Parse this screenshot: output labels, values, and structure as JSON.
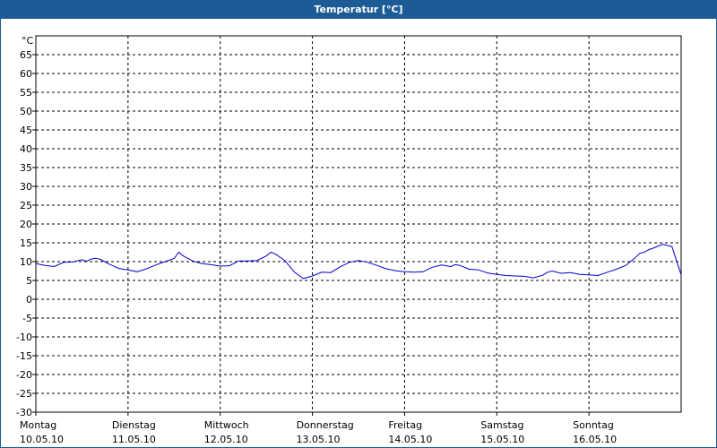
{
  "chart_data": {
    "type": "line",
    "title": "Temperatur [°C]",
    "unit": "°C",
    "ylim": [
      -30,
      70
    ],
    "yticks": [
      65,
      60,
      55,
      50,
      45,
      40,
      35,
      30,
      25,
      20,
      15,
      10,
      5,
      0,
      -5,
      -10,
      -15,
      -20,
      -25,
      -30
    ],
    "grid": true,
    "xlim": [
      0,
      7
    ],
    "days": [
      {
        "name": "Montag",
        "date": "10.05.10"
      },
      {
        "name": "Dienstag",
        "date": "11.05.10"
      },
      {
        "name": "Mittwoch",
        "date": "12.05.10"
      },
      {
        "name": "Donnerstag",
        "date": "13.05.10"
      },
      {
        "name": "Freitag",
        "date": "14.05.10"
      },
      {
        "name": "Samstag",
        "date": "15.05.10"
      },
      {
        "name": "Sonntag",
        "date": "16.05.10"
      }
    ],
    "series": [
      {
        "color": "#0000cc",
        "x": [
          0,
          0.1,
          0.2,
          0.3,
          0.4,
          0.5,
          0.55,
          0.6,
          0.65,
          0.7,
          0.8,
          0.9,
          1.0,
          1.1,
          1.2,
          1.3,
          1.4,
          1.5,
          1.55,
          1.6,
          1.7,
          1.8,
          1.9,
          2.0,
          2.1,
          2.2,
          2.3,
          2.4,
          2.5,
          2.55,
          2.6,
          2.7,
          2.8,
          2.9,
          3.0,
          3.1,
          3.2,
          3.3,
          3.4,
          3.5,
          3.6,
          3.7,
          3.8,
          3.9,
          4.0,
          4.1,
          4.2,
          4.3,
          4.4,
          4.5,
          4.55,
          4.6,
          4.7,
          4.8,
          4.9,
          5.0,
          5.1,
          5.2,
          5.3,
          5.4,
          5.5,
          5.55,
          5.6,
          5.7,
          5.8,
          5.9,
          6.0,
          6.1,
          6.2,
          6.3,
          6.4,
          6.5,
          6.55,
          6.6,
          6.65,
          6.7,
          6.8,
          6.9,
          7.0
        ],
        "y": [
          9.5,
          9.0,
          8.7,
          9.8,
          9.9,
          10.5,
          10.1,
          10.7,
          10.9,
          10.6,
          9.3,
          8.2,
          7.8,
          7.3,
          8.1,
          9.1,
          10.0,
          10.8,
          12.5,
          11.5,
          10.2,
          9.5,
          9.2,
          8.8,
          8.9,
          10.2,
          10.2,
          10.3,
          11.5,
          12.5,
          12.0,
          10.3,
          7.3,
          5.5,
          6.2,
          7.2,
          7.1,
          8.6,
          9.8,
          10.3,
          9.8,
          9.0,
          8.1,
          7.6,
          7.3,
          7.2,
          7.3,
          8.5,
          9.1,
          8.7,
          9.2,
          9.0,
          8.0,
          7.8,
          7.0,
          6.6,
          6.3,
          6.2,
          6.1,
          5.7,
          6.4,
          7.2,
          7.5,
          6.9,
          7.1,
          6.6,
          6.5,
          6.3,
          7.2,
          8.0,
          9.0,
          11.0,
          12.2,
          12.5,
          13.2,
          13.6,
          14.6,
          14.0,
          6.5
        ]
      }
    ]
  }
}
